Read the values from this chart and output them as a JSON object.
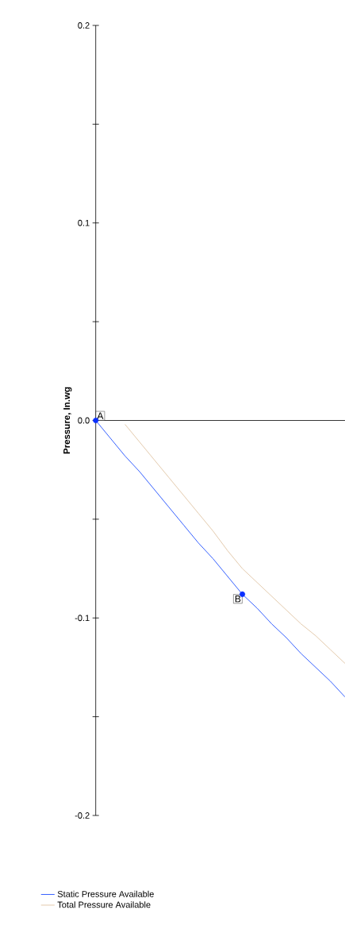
{
  "chart_data": {
    "type": "line",
    "ylabel": "Pressure, In.wg",
    "categories": [
      null,
      null,
      null,
      null,
      null,
      null,
      null,
      null,
      null,
      null,
      null,
      null,
      null,
      null,
      null,
      null,
      null,
      null
    ],
    "series": [
      {
        "name": "Static Pressure Available",
        "color": "#1f4fff",
        "values": [
          0,
          -0.009,
          -0.018,
          -0.026,
          -0.035,
          -0.044,
          -0.053,
          -0.062,
          -0.07,
          -0.079,
          -0.088,
          -0.095,
          -0.103,
          -0.11,
          -0.118,
          -0.125,
          -0.132,
          -0.14
        ]
      },
      {
        "name": "Total Pressure Available",
        "color": "#e0c4a4",
        "values": [
          null,
          null,
          -0.002,
          -0.011,
          -0.02,
          -0.029,
          -0.038,
          -0.047,
          -0.056,
          -0.066,
          -0.075,
          -0.082,
          -0.089,
          -0.096,
          -0.103,
          -0.109,
          -0.116,
          -0.123
        ]
      },
      {
        "type": "scatter",
        "color": "#0a2fff",
        "marker": "circle",
        "values": [
          0,
          null,
          null,
          null,
          null,
          null,
          null,
          null,
          null,
          null,
          -0.088,
          null,
          null,
          null,
          null,
          null,
          null,
          null
        ]
      }
    ],
    "annotations": [
      "A",
      "B"
    ],
    "ylim": [
      -0.2,
      0.2
    ],
    "yticks": [
      {
        "value": -0.2,
        "label": "-0.2"
      },
      {
        "value": -0.15,
        "label": null
      },
      {
        "value": -0.1,
        "label": "-0.1"
      },
      {
        "value": -0.05,
        "label": null
      },
      {
        "value": 0,
        "label": "0.0"
      },
      {
        "value": 0.05,
        "label": null
      },
      {
        "value": 0.1,
        "label": "0.1"
      },
      {
        "value": 0.15,
        "label": null
      },
      {
        "value": 0.2,
        "label": "0.2"
      }
    ],
    "tick_labels": "y",
    "legend": "bottom",
    "marker": "none",
    "line_style": "solid"
  }
}
